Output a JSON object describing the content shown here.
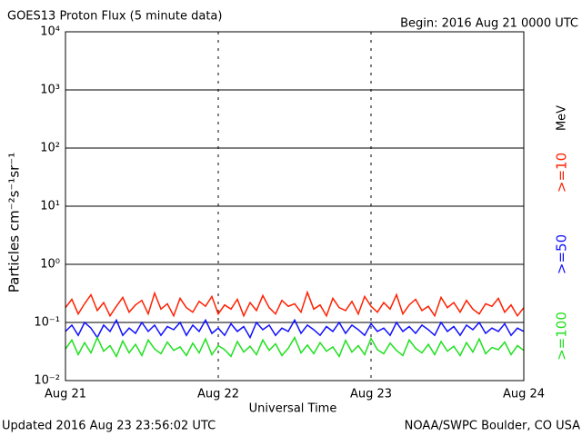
{
  "chart_data": {
    "type": "line",
    "title": "GOES13 Proton Flux (5 minute data)",
    "subtitle": "Begin: 2016 Aug 21 0000 UTC",
    "ylabel": "Particles cm⁻²s⁻¹sr⁻¹",
    "xlabel": "Universal Time",
    "footer_left": "Updated 2016 Aug 23 23:56:02 UTC",
    "footer_right": "NOAA/SWPC Boulder, CO USA",
    "legend_unit": "MeV",
    "legend_position": "right",
    "log_y": true,
    "grid": true,
    "xlim": [
      0,
      72
    ],
    "xticks": [
      {
        "value": 0,
        "label": "Aug 21"
      },
      {
        "value": 24,
        "label": "Aug 22"
      },
      {
        "value": 48,
        "label": "Aug 23"
      },
      {
        "value": 72,
        "label": "Aug 24"
      }
    ],
    "ylim": [
      0.01,
      10000
    ],
    "yticks": [
      {
        "value": 0.01,
        "label": "10⁻²"
      },
      {
        "value": 0.1,
        "label": "10⁻¹"
      },
      {
        "value": 1,
        "label": "10⁰"
      },
      {
        "value": 10,
        "label": "10¹"
      },
      {
        "value": 100,
        "label": "10²"
      },
      {
        "value": 1000,
        "label": "10³"
      },
      {
        "value": 10000,
        "label": "10⁴"
      }
    ],
    "x": [
      0,
      1,
      2,
      3,
      4,
      5,
      6,
      7,
      8,
      9,
      10,
      11,
      12,
      13,
      14,
      15,
      16,
      17,
      18,
      19,
      20,
      21,
      22,
      23,
      24,
      25,
      26,
      27,
      28,
      29,
      30,
      31,
      32,
      33,
      34,
      35,
      36,
      37,
      38,
      39,
      40,
      41,
      42,
      43,
      44,
      45,
      46,
      47,
      48,
      49,
      50,
      51,
      52,
      53,
      54,
      55,
      56,
      57,
      58,
      59,
      60,
      61,
      62,
      63,
      64,
      65,
      66,
      67,
      68,
      69,
      70,
      71,
      72
    ],
    "series": [
      {
        "name": ">=10",
        "color": "#ff2000",
        "values": [
          0.18,
          0.25,
          0.14,
          0.21,
          0.3,
          0.16,
          0.22,
          0.13,
          0.19,
          0.27,
          0.15,
          0.2,
          0.24,
          0.14,
          0.32,
          0.17,
          0.21,
          0.13,
          0.26,
          0.18,
          0.15,
          0.23,
          0.19,
          0.28,
          0.14,
          0.2,
          0.17,
          0.25,
          0.13,
          0.22,
          0.16,
          0.29,
          0.18,
          0.14,
          0.24,
          0.19,
          0.21,
          0.15,
          0.33,
          0.17,
          0.2,
          0.13,
          0.26,
          0.18,
          0.16,
          0.23,
          0.14,
          0.28,
          0.19,
          0.15,
          0.22,
          0.17,
          0.3,
          0.14,
          0.2,
          0.25,
          0.16,
          0.19,
          0.13,
          0.27,
          0.18,
          0.22,
          0.15,
          0.24,
          0.17,
          0.14,
          0.21,
          0.19,
          0.26,
          0.15,
          0.2,
          0.13,
          0.18
        ]
      },
      {
        "name": ">=50",
        "color": "#1010ff",
        "values": [
          0.07,
          0.09,
          0.06,
          0.1,
          0.08,
          0.055,
          0.09,
          0.07,
          0.11,
          0.06,
          0.08,
          0.065,
          0.1,
          0.07,
          0.09,
          0.06,
          0.085,
          0.075,
          0.1,
          0.06,
          0.09,
          0.07,
          0.11,
          0.065,
          0.08,
          0.06,
          0.095,
          0.07,
          0.085,
          0.055,
          0.1,
          0.075,
          0.09,
          0.06,
          0.08,
          0.07,
          0.11,
          0.065,
          0.09,
          0.075,
          0.06,
          0.085,
          0.07,
          0.1,
          0.065,
          0.09,
          0.075,
          0.06,
          0.095,
          0.07,
          0.08,
          0.06,
          0.1,
          0.07,
          0.085,
          0.065,
          0.09,
          0.075,
          0.06,
          0.1,
          0.07,
          0.085,
          0.06,
          0.09,
          0.075,
          0.1,
          0.065,
          0.08,
          0.07,
          0.095,
          0.06,
          0.08,
          0.07
        ]
      },
      {
        "name": ">=100",
        "color": "#20e020",
        "values": [
          0.035,
          0.05,
          0.028,
          0.045,
          0.03,
          0.055,
          0.032,
          0.04,
          0.026,
          0.048,
          0.03,
          0.042,
          0.027,
          0.05,
          0.035,
          0.029,
          0.046,
          0.033,
          0.038,
          0.027,
          0.044,
          0.03,
          0.052,
          0.028,
          0.04,
          0.034,
          0.026,
          0.047,
          0.031,
          0.039,
          0.028,
          0.05,
          0.033,
          0.043,
          0.027,
          0.036,
          0.055,
          0.03,
          0.041,
          0.029,
          0.045,
          0.032,
          0.038,
          0.026,
          0.049,
          0.031,
          0.04,
          0.028,
          0.053,
          0.034,
          0.029,
          0.044,
          0.033,
          0.027,
          0.05,
          0.036,
          0.03,
          0.042,
          0.028,
          0.047,
          0.032,
          0.039,
          0.027,
          0.045,
          0.031,
          0.052,
          0.029,
          0.037,
          0.034,
          0.046,
          0.028,
          0.04,
          0.033
        ]
      }
    ]
  }
}
